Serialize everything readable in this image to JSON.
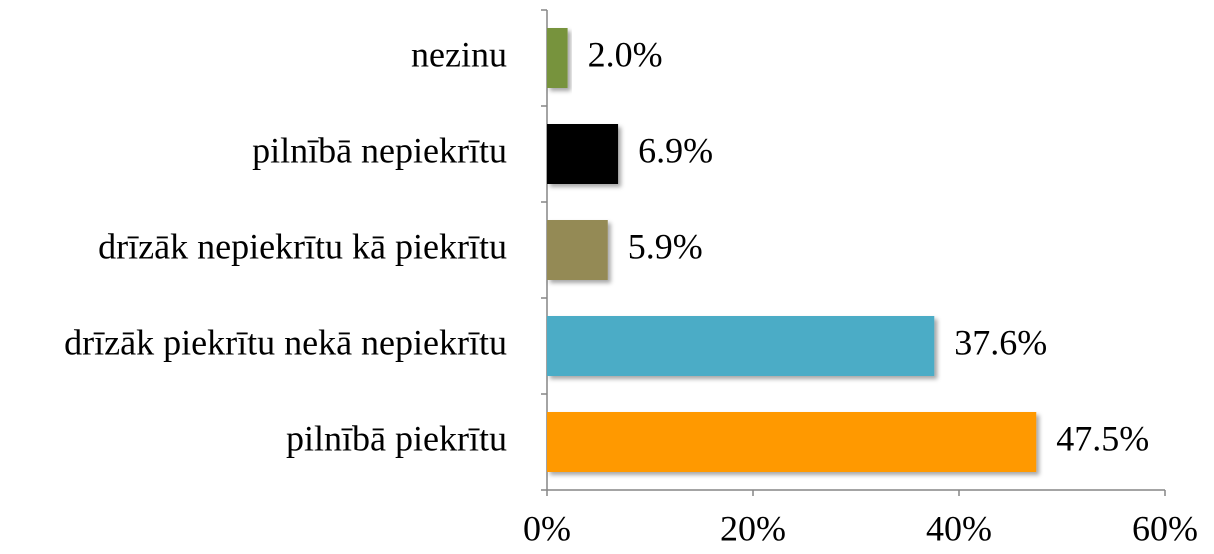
{
  "chart_data": {
    "type": "hbar",
    "categories": [
      "nezinu",
      "pilnībā nepiekrītu",
      "drīzāk nepiekrītu kā piekrītu",
      "drīzāk piekrītu nekā nepiekrītu",
      "pilnībā piekrītu"
    ],
    "values": [
      2.0,
      6.9,
      5.9,
      37.6,
      47.5
    ],
    "value_labels": [
      "2.0%",
      "6.9%",
      "5.9%",
      "37.6%",
      "47.5%"
    ],
    "colors": [
      "#77933c",
      "#000000",
      "#948a54",
      "#4bacc6",
      "#ff9900"
    ],
    "xlim": [
      0,
      60
    ],
    "xticks": [
      {
        "value": 0,
        "label": "0%"
      },
      {
        "value": 20,
        "label": "20%"
      },
      {
        "value": 40,
        "label": "40%"
      },
      {
        "value": 60,
        "label": "60%"
      }
    ]
  }
}
